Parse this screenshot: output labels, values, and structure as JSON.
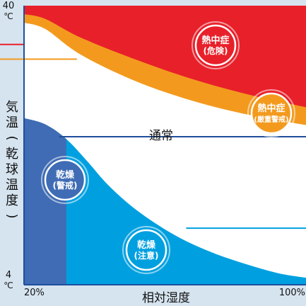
{
  "chart_data": {
    "type": "area",
    "title": "",
    "xlabel": "相対湿度",
    "ylabel": "気温(乾球温度)",
    "xlim": [
      20,
      100
    ],
    "ylim": [
      4,
      40
    ],
    "x_ticks": [
      {
        "value": 20,
        "label": "20%"
      },
      {
        "value": 100,
        "label": "100%"
      }
    ],
    "y_ticks": [
      {
        "value": 40,
        "label": "40",
        "unit": "℃"
      },
      {
        "value": 4,
        "label": "4",
        "unit": "℃"
      }
    ],
    "regions": [
      {
        "name": "熱中症(危険)",
        "badge_lines": [
          "熱中症",
          "(危険)"
        ],
        "color": "#e8202a",
        "upper": [
          [
            20,
            40
          ],
          [
            100,
            40
          ]
        ],
        "lower": [
          [
            20,
            38.9
          ],
          [
            26,
            38.3
          ],
          [
            36,
            35.9
          ],
          [
            52,
            33.0
          ],
          [
            68,
            30.5
          ],
          [
            84,
            28.5
          ],
          [
            100,
            26.9
          ]
        ]
      },
      {
        "name": "熱中症(厳重警戒)",
        "badge_lines": [
          "熱中症",
          "(厳重警戒)"
        ],
        "color": "#f39a1e",
        "lower": [
          [
            20,
            37.8
          ],
          [
            26,
            37.0
          ],
          [
            36,
            33.7
          ],
          [
            52,
            30.2
          ],
          [
            68,
            27.7
          ],
          [
            84,
            25.9
          ],
          [
            100,
            24.6
          ]
        ]
      },
      {
        "name": "通常",
        "label": "通常",
        "color": "#ffffff"
      },
      {
        "name": "乾燥(注意)",
        "badge_lines": [
          "乾燥",
          "(注意)"
        ],
        "color": "#00a0e0",
        "curve": [
          [
            20,
            25.5
          ],
          [
            26,
            24.7
          ],
          [
            32,
            22.8
          ],
          [
            38,
            19.9
          ],
          [
            44,
            16.8
          ],
          [
            52,
            13.6
          ],
          [
            62,
            10.6
          ],
          [
            72,
            8.4
          ],
          [
            82,
            6.8
          ],
          [
            92,
            5.5
          ],
          [
            100,
            4.9
          ]
        ]
      },
      {
        "name": "乾燥(警戒)",
        "badge_lines": [
          "乾燥",
          "(警戒)"
        ],
        "color": "#3f6cb4",
        "x_max": 32
      }
    ],
    "reference_lines": [
      {
        "name": "red-line",
        "color": "#e8202a",
        "y": 35.0,
        "x_end": 20
      },
      {
        "name": "orange-line",
        "color": "#f39a1e",
        "y": 33.1,
        "x_end": 35
      },
      {
        "name": "navy-line",
        "color": "#1f4e9c",
        "y": 23.1,
        "x_start": 30,
        "x_end": 100
      },
      {
        "name": "cyan-line",
        "color": "#00a0e0",
        "y": 11.3,
        "x_start": 66,
        "x_end": 100
      }
    ],
    "axis_color": "#1f4e9c",
    "background": "#d6e4f0"
  }
}
